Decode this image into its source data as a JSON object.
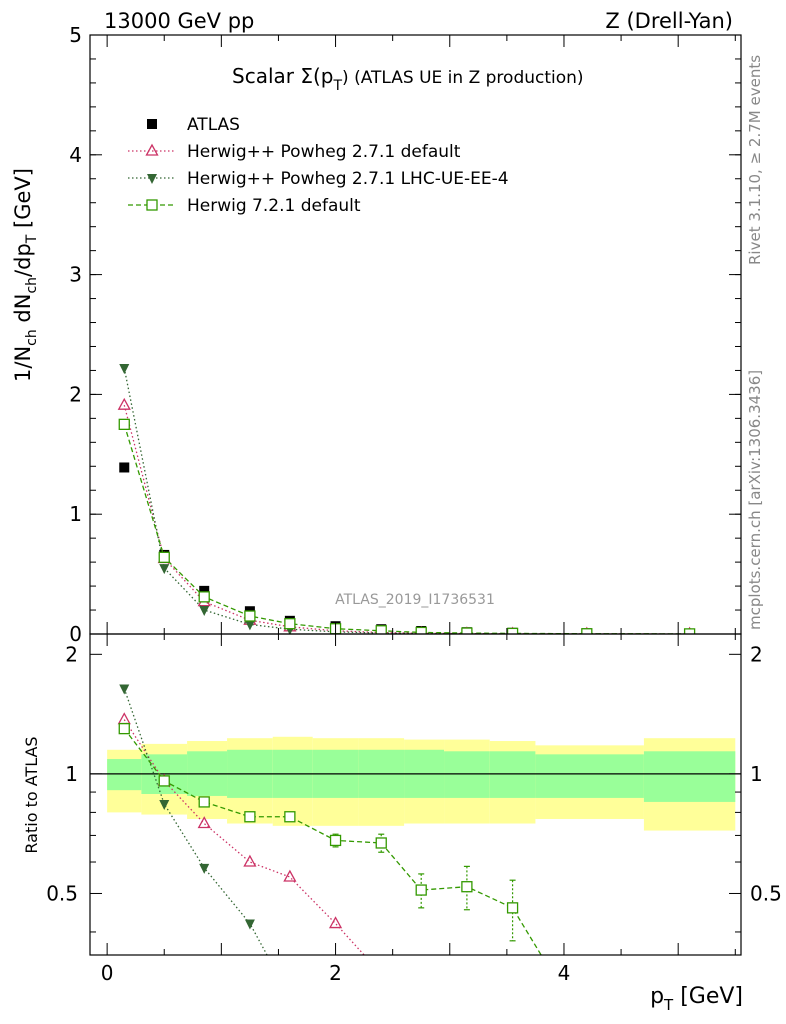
{
  "header": {
    "energy_label": "13000 GeV pp",
    "process_label": "Z (Drell-Yan)",
    "plot_title": "Scalar Σ(p",
    "plot_title_sub": "T",
    "plot_title_rest": ") (ATLAS UE in Z production)",
    "analysis_id": "ATLAS_2019_I1736531",
    "rivet_label": "Rivet 3.1.10, ≥ 2.7M events",
    "mcplots_label": "mcplots.cern.ch [arXiv:1306.3436]"
  },
  "colors": {
    "atlas": "#000000",
    "powheg_default": "#cc3366",
    "powheg_lhc": "#336633",
    "herwig721": "#339900",
    "band_inner": "#99ff99",
    "band_outer": "#ffff99"
  },
  "chart_data": [
    {
      "type": "scatter",
      "panel": "main",
      "title": "Scalar Σ(pT) (ATLAS UE in Z production)",
      "xlabel": "p_T [GeV]",
      "ylabel": "1/N_ch dN_ch/dp_T [GeV]",
      "xlim": [
        -0.15,
        5.55
      ],
      "ylim": [
        0,
        5
      ],
      "yticks": [
        "0",
        "1",
        "2",
        "3",
        "4",
        "5"
      ],
      "legend_position": "top-left",
      "series": [
        {
          "name": "ATLAS",
          "marker": "filled-square",
          "x": [
            0.15,
            0.5,
            0.85,
            1.25,
            1.6,
            2.0,
            2.4,
            2.75,
            3.15,
            3.55,
            4.2,
            5.1
          ],
          "y": [
            1.39,
            0.66,
            0.36,
            0.19,
            0.11,
            0.065,
            0.04,
            0.025,
            0.015,
            0.01,
            0.006,
            0.003
          ]
        },
        {
          "name": "Herwig++ Powheg 2.7.1 default",
          "marker": "open-triangle",
          "line": "dotted",
          "x": [
            0.15,
            0.5,
            0.85,
            1.25,
            1.6,
            2.0,
            2.4,
            2.75,
            3.15,
            3.55,
            4.2,
            5.1
          ],
          "y": [
            1.91,
            0.63,
            0.27,
            0.115,
            0.06,
            0.027,
            0.012,
            0.006,
            0.003,
            0.0015,
            0.0006,
            0.0002
          ]
        },
        {
          "name": "Herwig++ Powheg 2.7.1 LHC-UE-EE-4",
          "marker": "filled-triangle-down",
          "line": "dotted",
          "x": [
            0.15,
            0.5,
            0.85,
            1.25,
            1.6,
            2.0,
            2.4,
            2.75,
            3.15,
            3.55,
            4.2,
            5.1
          ],
          "y": [
            2.22,
            0.55,
            0.2,
            0.08,
            0.04,
            0.018,
            0.008,
            0.004,
            0.002,
            0.001,
            0.0004,
            0.0001
          ]
        },
        {
          "name": "Herwig 7.2.1 default",
          "marker": "open-square",
          "line": "dashed",
          "x": [
            0.15,
            0.5,
            0.85,
            1.25,
            1.6,
            2.0,
            2.4,
            2.75,
            3.15,
            3.55,
            4.2,
            5.1
          ],
          "y": [
            1.75,
            0.64,
            0.31,
            0.15,
            0.086,
            0.044,
            0.027,
            0.013,
            0.008,
            0.005,
            0.002,
            0.001
          ]
        }
      ]
    },
    {
      "type": "line",
      "panel": "ratio",
      "xlabel": "p_T [GeV]",
      "ylabel": "Ratio to ATLAS",
      "xlim": [
        -0.15,
        5.55
      ],
      "ylim": [
        0.35,
        2.25
      ],
      "xticks": [
        "0",
        "2",
        "4"
      ],
      "yticks": [
        "0.5",
        "1",
        "2"
      ],
      "reference_line": 1,
      "bands": [
        {
          "x_low": 0.0,
          "x_high": 0.3,
          "inner": [
            0.91,
            1.09
          ],
          "outer": [
            0.8,
            1.15
          ]
        },
        {
          "x_low": 0.3,
          "x_high": 0.7,
          "inner": [
            0.89,
            1.12
          ],
          "outer": [
            0.79,
            1.19
          ]
        },
        {
          "x_low": 0.7,
          "x_high": 1.05,
          "inner": [
            0.88,
            1.14
          ],
          "outer": [
            0.77,
            1.21
          ]
        },
        {
          "x_low": 1.05,
          "x_high": 1.45,
          "inner": [
            0.87,
            1.15
          ],
          "outer": [
            0.75,
            1.23
          ]
        },
        {
          "x_low": 1.45,
          "x_high": 1.8,
          "inner": [
            0.87,
            1.15
          ],
          "outer": [
            0.74,
            1.24
          ]
        },
        {
          "x_low": 1.8,
          "x_high": 2.2,
          "inner": [
            0.87,
            1.15
          ],
          "outer": [
            0.74,
            1.23
          ]
        },
        {
          "x_low": 2.2,
          "x_high": 2.6,
          "inner": [
            0.87,
            1.15
          ],
          "outer": [
            0.74,
            1.23
          ]
        },
        {
          "x_low": 2.6,
          "x_high": 2.95,
          "inner": [
            0.87,
            1.15
          ],
          "outer": [
            0.75,
            1.22
          ]
        },
        {
          "x_low": 2.95,
          "x_high": 3.35,
          "inner": [
            0.87,
            1.14
          ],
          "outer": [
            0.75,
            1.22
          ]
        },
        {
          "x_low": 3.35,
          "x_high": 3.75,
          "inner": [
            0.87,
            1.14
          ],
          "outer": [
            0.75,
            1.21
          ]
        },
        {
          "x_low": 3.75,
          "x_high": 4.7,
          "inner": [
            0.87,
            1.12
          ],
          "outer": [
            0.77,
            1.18
          ]
        },
        {
          "x_low": 4.7,
          "x_high": 5.5,
          "inner": [
            0.85,
            1.14
          ],
          "outer": [
            0.72,
            1.23
          ]
        }
      ],
      "series": [
        {
          "name": "Herwig++ Powheg 2.7.1 default",
          "marker": "open-triangle",
          "line": "dotted",
          "x": [
            0.15,
            0.5,
            0.85,
            1.25,
            1.6,
            2.0,
            2.25
          ],
          "y": [
            1.37,
            0.96,
            0.75,
            0.6,
            0.55,
            0.42,
            0.35
          ]
        },
        {
          "name": "Herwig++ Powheg 2.7.1 LHC-UE-EE-4",
          "marker": "filled-triangle-down",
          "line": "dotted",
          "x": [
            0.15,
            0.5,
            0.85,
            1.25,
            1.4
          ],
          "y": [
            1.64,
            0.84,
            0.58,
            0.42,
            0.35
          ]
        },
        {
          "name": "Herwig 7.2.1 default",
          "marker": "open-square",
          "line": "dashed",
          "x": [
            0.15,
            0.5,
            0.85,
            1.25,
            1.6,
            2.0,
            2.4,
            2.75,
            3.15,
            3.55,
            3.8
          ],
          "y": [
            1.3,
            0.96,
            0.85,
            0.78,
            0.78,
            0.68,
            0.67,
            0.51,
            0.52,
            0.46,
            0.35
          ],
          "yerr": [
            0.01,
            0.01,
            0.01,
            0.015,
            0.02,
            0.025,
            0.035,
            0.05,
            0.065,
            0.08,
            0
          ]
        }
      ]
    }
  ]
}
